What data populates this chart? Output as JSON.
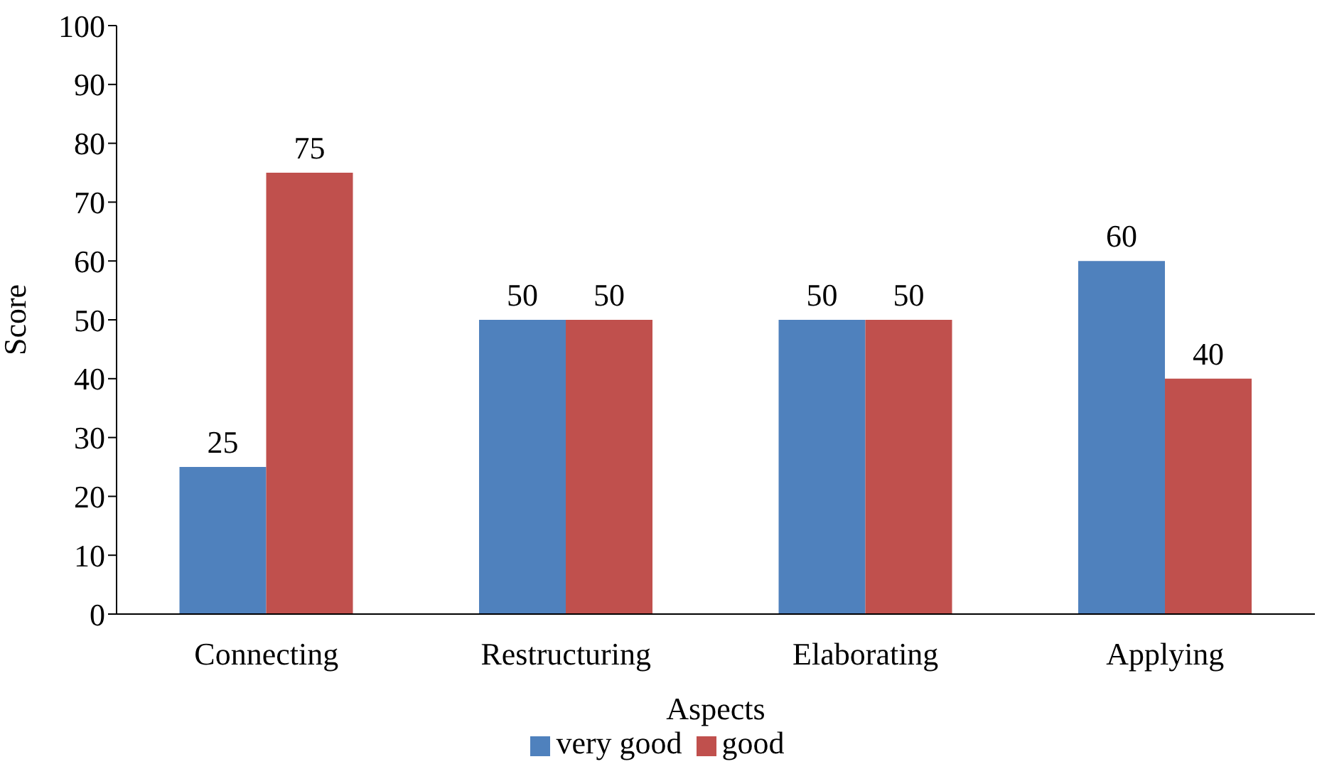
{
  "chart_data": {
    "type": "bar",
    "xlabel": "Aspects",
    "ylabel": "Score",
    "categories": [
      "Connecting",
      "Restructuring",
      "Elaborating",
      "Applying"
    ],
    "series": [
      {
        "name": "very good",
        "color": "#4f81bd",
        "values": [
          25,
          50,
          50,
          60
        ]
      },
      {
        "name": "good",
        "color": "#c0504d",
        "values": [
          75,
          50,
          50,
          40
        ]
      }
    ],
    "ylim": [
      0,
      100
    ],
    "yticks": [
      0,
      10,
      20,
      30,
      40,
      50,
      60,
      70,
      80,
      90,
      100
    ],
    "data_labels": true,
    "grid": false,
    "legend": "bottom"
  }
}
